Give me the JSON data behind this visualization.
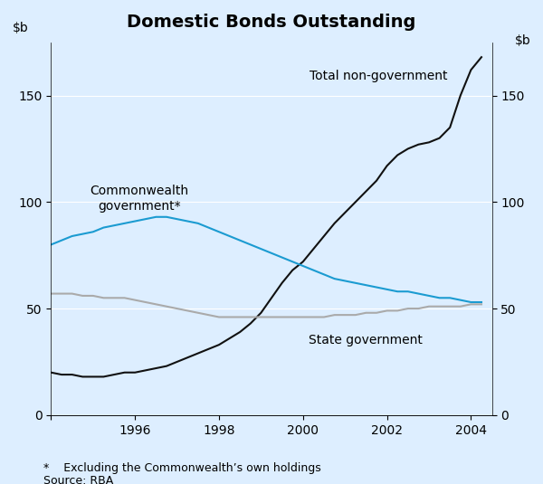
{
  "title": "Domestic Bonds Outstanding",
  "footnote": "*    Excluding the Commonwealth’s own holdings",
  "source": "Source: RBA",
  "background_color": "#ddeeff",
  "ylim": [
    0,
    175
  ],
  "yticks": [
    0,
    50,
    100,
    150
  ],
  "xlim_start": 1994.0,
  "xlim_end": 2004.5,
  "xticks": [
    1994,
    1996,
    1998,
    2000,
    2002,
    2004
  ],
  "xticklabels": [
    "",
    "1996",
    "1998",
    "2000",
    "2002",
    "2004"
  ],
  "total_non_gov": {
    "color": "#111111",
    "label": "Total non-government",
    "x": [
      1994.0,
      1994.25,
      1994.5,
      1994.75,
      1995.0,
      1995.25,
      1995.5,
      1995.75,
      1996.0,
      1996.25,
      1996.5,
      1996.75,
      1997.0,
      1997.25,
      1997.5,
      1997.75,
      1998.0,
      1998.25,
      1998.5,
      1998.75,
      1999.0,
      1999.25,
      1999.5,
      1999.75,
      2000.0,
      2000.25,
      2000.5,
      2000.75,
      2001.0,
      2001.25,
      2001.5,
      2001.75,
      2002.0,
      2002.25,
      2002.5,
      2002.75,
      2003.0,
      2003.25,
      2003.5,
      2003.75,
      2004.0,
      2004.25
    ],
    "y": [
      20,
      19,
      19,
      18,
      18,
      18,
      19,
      20,
      20,
      21,
      22,
      23,
      25,
      27,
      29,
      31,
      33,
      36,
      39,
      43,
      48,
      55,
      62,
      68,
      72,
      78,
      84,
      90,
      95,
      100,
      105,
      110,
      117,
      122,
      125,
      127,
      128,
      130,
      135,
      150,
      162,
      168
    ]
  },
  "commonwealth_gov": {
    "color": "#1b9bd1",
    "label": "Commonwealth government*",
    "x": [
      1994.0,
      1994.25,
      1994.5,
      1994.75,
      1995.0,
      1995.25,
      1995.5,
      1995.75,
      1996.0,
      1996.25,
      1996.5,
      1996.75,
      1997.0,
      1997.25,
      1997.5,
      1997.75,
      1998.0,
      1998.25,
      1998.5,
      1998.75,
      1999.0,
      1999.25,
      1999.5,
      1999.75,
      2000.0,
      2000.25,
      2000.5,
      2000.75,
      2001.0,
      2001.25,
      2001.5,
      2001.75,
      2002.0,
      2002.25,
      2002.5,
      2002.75,
      2003.0,
      2003.25,
      2003.5,
      2003.75,
      2004.0,
      2004.25
    ],
    "y": [
      80,
      82,
      84,
      85,
      86,
      88,
      89,
      90,
      91,
      92,
      93,
      93,
      92,
      91,
      90,
      88,
      86,
      84,
      82,
      80,
      78,
      76,
      74,
      72,
      70,
      68,
      66,
      64,
      63,
      62,
      61,
      60,
      59,
      58,
      58,
      57,
      56,
      55,
      55,
      54,
      53,
      53
    ]
  },
  "state_gov": {
    "color": "#aaaaaa",
    "label": "State government",
    "x": [
      1994.0,
      1994.25,
      1994.5,
      1994.75,
      1995.0,
      1995.25,
      1995.5,
      1995.75,
      1996.0,
      1996.25,
      1996.5,
      1996.75,
      1997.0,
      1997.25,
      1997.5,
      1997.75,
      1998.0,
      1998.25,
      1998.5,
      1998.75,
      1999.0,
      1999.25,
      1999.5,
      1999.75,
      2000.0,
      2000.25,
      2000.5,
      2000.75,
      2001.0,
      2001.25,
      2001.5,
      2001.75,
      2002.0,
      2002.25,
      2002.5,
      2002.75,
      2003.0,
      2003.25,
      2003.5,
      2003.75,
      2004.0,
      2004.25
    ],
    "y": [
      57,
      57,
      57,
      56,
      56,
      55,
      55,
      55,
      54,
      53,
      52,
      51,
      50,
      49,
      48,
      47,
      46,
      46,
      46,
      46,
      46,
      46,
      46,
      46,
      46,
      46,
      46,
      47,
      47,
      47,
      48,
      48,
      49,
      49,
      50,
      50,
      51,
      51,
      51,
      51,
      52,
      52
    ]
  }
}
